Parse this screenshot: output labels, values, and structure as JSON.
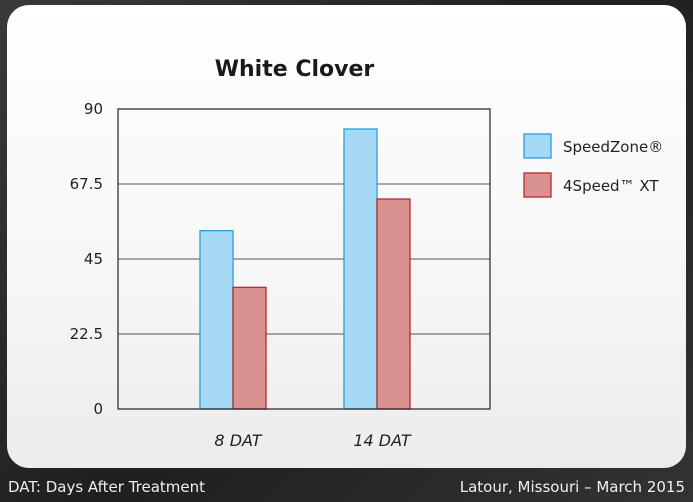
{
  "footer": {
    "left_text": "DAT: Days After Treatment",
    "right_text": "Latour, Missouri – March 2015"
  },
  "chart_data": {
    "type": "bar",
    "title": "White Clover",
    "categories": [
      "8 DAT",
      "14 DAT"
    ],
    "series": [
      {
        "name": "SpeedZone®",
        "values": [
          53.5,
          84
        ],
        "color": "#a6d9f5",
        "stroke": "#2a9fd6"
      },
      {
        "name": "4Speed™ XT",
        "values": [
          36.5,
          63
        ],
        "color": "#da9290",
        "stroke": "#b52a32"
      }
    ],
    "yticks": [
      "0",
      "22.5",
      "45",
      "67.5",
      "90"
    ],
    "ylim": [
      0,
      90
    ],
    "grid": true,
    "legend": "right",
    "xlabel": "",
    "ylabel": ""
  }
}
